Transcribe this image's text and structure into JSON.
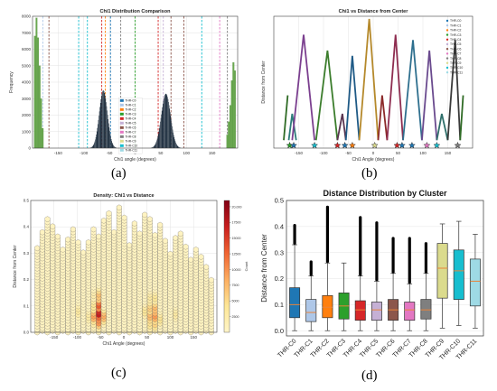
{
  "panel_labels": [
    "(a)",
    "(b)",
    "(c)",
    "(d)"
  ],
  "colors": {
    "THR-C0": "#1f77b4",
    "THR-C1": "#aec7e8",
    "THR-C2": "#ff7f0e",
    "THR-C3": "#2ca02c",
    "THR-C4": "#d62728",
    "THR-C5": "#c5b0d5",
    "THR-C6": "#8c564b",
    "THR-C7": "#e377c2",
    "THR-C8": "#7f7f7f",
    "THR-C9": "#dbdb8d",
    "THR-C10": "#17becf",
    "THR-C11": "#9edae5"
  },
  "chart_data": [
    {
      "type": "bar",
      "title": "Chi1 Distribution Comparison",
      "xlabel": "Chi1 angle (degrees)",
      "ylabel": "Frequency",
      "xlim": [
        -200,
        200
      ],
      "ylim": [
        0,
        8000
      ],
      "xticks": [
        -150,
        -100,
        -50,
        0,
        50,
        100,
        150
      ],
      "yticks": [
        0,
        1000,
        2000,
        3000,
        4000,
        5000,
        6000,
        7000,
        8000
      ],
      "grid": true,
      "legend_position": "lower-center",
      "legend": [
        "THR-C0",
        "THR-C1",
        "THR-C2",
        "THR-C3",
        "THR-C4",
        "THR-C5",
        "THR-C6",
        "THR-C7",
        "THR-C8",
        "THR-C9",
        "THR-C10",
        "THR-C11"
      ],
      "green_bars": {
        "x": [
          -195,
          -192,
          -189,
          -186,
          -183,
          -180,
          180,
          183,
          186,
          189,
          192,
          195
        ],
        "y": [
          6800,
          7900,
          6700,
          5000,
          3000,
          1200,
          800,
          1600,
          2600,
          4100,
          5200,
          4700
        ]
      },
      "peaks": [
        {
          "center": -62,
          "height": 3500,
          "width": 8
        },
        {
          "center": 60,
          "height": 3300,
          "width": 9
        }
      ],
      "vlines": [
        {
          "x": -180,
          "series": "THR-C1"
        },
        {
          "x": -168,
          "series": "THR-C6"
        },
        {
          "x": -110,
          "series": "THR-C10"
        },
        {
          "x": -93,
          "series": "THR-C10"
        },
        {
          "x": -65,
          "series": "THR-C4"
        },
        {
          "x": -58,
          "series": "THR-C2"
        },
        {
          "x": -48,
          "series": "THR-C0"
        },
        {
          "x": -28,
          "series": "THR-C8"
        },
        {
          "x": 0,
          "series": "THR-C3"
        },
        {
          "x": 45,
          "series": "THR-C4"
        },
        {
          "x": 55,
          "series": "THR-C5"
        },
        {
          "x": 70,
          "series": "THR-C6"
        },
        {
          "x": 95,
          "series": "THR-C6"
        },
        {
          "x": 130,
          "series": "THR-C10"
        },
        {
          "x": 165,
          "series": "THR-C7"
        },
        {
          "x": 180,
          "series": "THR-C8"
        }
      ]
    },
    {
      "type": "line",
      "title": "Chi1 vs Distance from Center",
      "xlabel": "Chi1 Angle (degrees)",
      "ylabel": "Distance from Center",
      "xlim": [
        -200,
        200
      ],
      "ylim": [
        0,
        0.5
      ],
      "xticks": [
        -150,
        -100,
        -50,
        0,
        50,
        100,
        150
      ],
      "yticks": [],
      "grid": true,
      "legend_position": "top-right",
      "legend": [
        "THR-C0",
        "THR-C1",
        "THR-C2",
        "THR-C3",
        "THR-C4",
        "THR-C5",
        "THR-C6",
        "THR-C7",
        "THR-C8",
        "THR-C9",
        "THR-C10",
        "THR-C11"
      ],
      "series": [
        {
          "name": "THR-C3",
          "color": "#2f6b25",
          "points": [
            [
              -180,
              0.03
            ],
            [
              -172,
              0.2
            ]
          ]
        },
        {
          "name": "THR-C0",
          "color": "#2e7d7a",
          "points": [
            [
              -170,
              0.03
            ],
            [
              -163,
              0.13
            ],
            [
              -155,
              0.03
            ]
          ]
        },
        {
          "name": "THR-C2",
          "color": "#7b3f8f",
          "points": [
            [
              -163,
              0.03
            ],
            [
              -140,
              0.43
            ],
            [
              -118,
              0.03
            ]
          ]
        },
        {
          "name": "THR-C3",
          "color": "#3b7d2c",
          "points": [
            [
              -115,
              0.03
            ],
            [
              -92,
              0.37
            ],
            [
              -72,
              0.03
            ]
          ]
        },
        {
          "name": "THR-C6",
          "color": "#5a3550",
          "points": [
            [
              -72,
              0.03
            ],
            [
              -62,
              0.13
            ],
            [
              -55,
              0.03
            ]
          ]
        },
        {
          "name": "THR-C1",
          "color": "#1f5a86",
          "points": [
            [
              -55,
              0.03
            ],
            [
              -42,
              0.35
            ],
            [
              -28,
              0.03
            ]
          ]
        },
        {
          "name": "THR-C9",
          "color": "#b5892b",
          "points": [
            [
              -28,
              0.03
            ],
            [
              -8,
              0.49
            ],
            [
              10,
              0.03
            ]
          ]
        },
        {
          "name": "THR-C4",
          "color": "#8c2a2a",
          "points": [
            [
              10,
              0.03
            ],
            [
              18,
              0.2
            ],
            [
              28,
              0.03
            ]
          ]
        },
        {
          "name": "THR-C7",
          "color": "#8e2d50",
          "points": [
            [
              28,
              0.03
            ],
            [
              45,
              0.43
            ],
            [
              60,
              0.03
            ]
          ]
        },
        {
          "name": "THR-C11",
          "color": "#2e6f8e",
          "points": [
            [
              60,
              0.03
            ],
            [
              80,
              0.41
            ],
            [
              98,
              0.03
            ]
          ]
        },
        {
          "name": "THR-C5",
          "color": "#6a4a8e",
          "points": [
            [
              98,
              0.03
            ],
            [
              113,
              0.37
            ],
            [
              128,
              0.03
            ]
          ]
        },
        {
          "name": "THR-C10",
          "color": "#2f6f6a",
          "points": [
            [
              128,
              0.03
            ],
            [
              138,
              0.13
            ],
            [
              150,
              0.03
            ]
          ]
        },
        {
          "name": "THR-C8",
          "color": "#3a3a3a",
          "points": [
            [
              150,
              0.03
            ],
            [
              165,
              0.41
            ],
            [
              175,
              0.03
            ]
          ]
        },
        {
          "name": "THR-C3",
          "color": "#2f6b25",
          "points": [
            [
              175,
              0.03
            ],
            [
              181,
              0.2
            ]
          ]
        }
      ],
      "stars": [
        {
          "x": -168,
          "color": "#2ca02c"
        },
        {
          "x": -160,
          "color": "#1f77b4"
        },
        {
          "x": -118,
          "color": "#17becf"
        },
        {
          "x": -72,
          "color": "#d62728"
        },
        {
          "x": -57,
          "color": "#1f77b4"
        },
        {
          "x": -42,
          "color": "#ff7f0e"
        },
        {
          "x": 3,
          "color": "#dbdb8d"
        },
        {
          "x": 48,
          "color": "#d62728"
        },
        {
          "x": 58,
          "color": "#1f77b4"
        },
        {
          "x": 78,
          "color": "#1f77b4"
        },
        {
          "x": 108,
          "color": "#e377c2"
        },
        {
          "x": 128,
          "color": "#17becf"
        },
        {
          "x": 170,
          "color": "#7f7f7f"
        }
      ]
    },
    {
      "type": "heatmap",
      "title": "Density: Chi1 vs Distance",
      "xlabel": "Chi1 Angle (degrees)",
      "ylabel": "Distance from Center",
      "colorbar_label": "Count",
      "colorbar_ticks": [
        2500,
        5000,
        7500,
        10000,
        12500,
        15000,
        17500,
        20000
      ],
      "colorbar_tick_labels": [
        "2500",
        "5000",
        "7500",
        "10000",
        "12500",
        "15000",
        "17500",
        "20,000"
      ],
      "xlim": [
        -200,
        200
      ],
      "ylim": [
        0,
        0.5
      ],
      "xticks": [
        -150,
        -100,
        -50,
        0,
        50,
        100,
        150
      ],
      "yticks": [
        0.0,
        0.1,
        0.2,
        0.3,
        0.4,
        0.5
      ],
      "grid": true,
      "columns": [
        {
          "x": -186,
          "top": 0.33
        },
        {
          "x": -175,
          "top": 0.38
        },
        {
          "x": -164,
          "top": 0.43
        },
        {
          "x": -153,
          "top": 0.41
        },
        {
          "x": -142,
          "top": 0.37
        },
        {
          "x": -131,
          "top": 0.32
        },
        {
          "x": -120,
          "top": 0.36
        },
        {
          "x": -109,
          "top": 0.4
        },
        {
          "x": -98,
          "top": 0.35
        },
        {
          "x": -87,
          "top": 0.31
        },
        {
          "x": -76,
          "top": 0.35
        },
        {
          "x": -65,
          "top": 0.4
        },
        {
          "x": -54,
          "top": 0.37
        },
        {
          "x": -43,
          "top": 0.43
        },
        {
          "x": -32,
          "top": 0.46
        },
        {
          "x": -21,
          "top": 0.38
        },
        {
          "x": -10,
          "top": 0.48
        },
        {
          "x": 1,
          "top": 0.44
        },
        {
          "x": 12,
          "top": 0.34
        },
        {
          "x": 23,
          "top": 0.42
        },
        {
          "x": 34,
          "top": 0.38
        },
        {
          "x": 45,
          "top": 0.45
        },
        {
          "x": 56,
          "top": 0.43
        },
        {
          "x": 67,
          "top": 0.37
        },
        {
          "x": 78,
          "top": 0.41
        },
        {
          "x": 89,
          "top": 0.35
        },
        {
          "x": 100,
          "top": 0.3
        },
        {
          "x": 111,
          "top": 0.36
        },
        {
          "x": 122,
          "top": 0.38
        },
        {
          "x": 133,
          "top": 0.33
        },
        {
          "x": 144,
          "top": 0.28
        },
        {
          "x": 155,
          "top": 0.32
        },
        {
          "x": 166,
          "top": 0.29
        },
        {
          "x": 177,
          "top": 0.25
        },
        {
          "x": 188,
          "top": 0.2
        }
      ],
      "hotspots": [
        {
          "x": -57,
          "y": 0.07,
          "count": 20000
        },
        {
          "x": -57,
          "y": 0.1,
          "count": 15000
        },
        {
          "x": -57,
          "y": 0.04,
          "count": 12000
        },
        {
          "x": -68,
          "y": 0.06,
          "count": 10500
        },
        {
          "x": -46,
          "y": 0.06,
          "count": 9500
        },
        {
          "x": -57,
          "y": 0.14,
          "count": 8000
        },
        {
          "x": 62,
          "y": 0.06,
          "count": 15000
        },
        {
          "x": 62,
          "y": 0.09,
          "count": 12000
        },
        {
          "x": 62,
          "y": 0.03,
          "count": 9000
        },
        {
          "x": 51,
          "y": 0.08,
          "count": 8000
        },
        {
          "x": 73,
          "y": 0.05,
          "count": 7000
        },
        {
          "x": 62,
          "y": 0.13,
          "count": 6500
        },
        {
          "x": -100,
          "y": 0.08,
          "count": 3500
        },
        {
          "x": 110,
          "y": 0.07,
          "count": 3000
        }
      ]
    },
    {
      "type": "box",
      "title": "Distance Distribution by Cluster",
      "xlabel": "",
      "ylabel": "Distance from Center",
      "ylim": [
        -0.02,
        0.5
      ],
      "yticks": [
        0.0,
        0.1,
        0.2,
        0.3,
        0.4,
        0.5
      ],
      "categories": [
        "THR-C0",
        "THR-C1",
        "THR-C2",
        "THR-C3",
        "THR-C4",
        "THR-C5",
        "THR-C6",
        "THR-C7",
        "THR-C8",
        "THR-C9",
        "THR-C10",
        "THR-C11"
      ],
      "boxes": [
        {
          "min": 0.0,
          "q1": 0.05,
          "median": 0.1,
          "q3": 0.165,
          "max": 0.33,
          "outlier_top": 0.41
        },
        {
          "min": 0.0,
          "q1": 0.035,
          "median": 0.07,
          "q3": 0.12,
          "max": 0.21,
          "outlier_top": 0.27
        },
        {
          "min": 0.0,
          "q1": 0.05,
          "median": 0.09,
          "q3": 0.135,
          "max": 0.26,
          "outlier_top": 0.48
        },
        {
          "min": 0.0,
          "q1": 0.045,
          "median": 0.095,
          "q3": 0.145,
          "max": 0.26,
          "outlier_top": null
        },
        {
          "min": 0.0,
          "q1": 0.04,
          "median": 0.08,
          "q3": 0.115,
          "max": 0.21,
          "outlier_top": 0.44
        },
        {
          "min": 0.0,
          "q1": 0.04,
          "median": 0.08,
          "q3": 0.11,
          "max": 0.19,
          "outlier_top": 0.42
        },
        {
          "min": 0.0,
          "q1": 0.04,
          "median": 0.08,
          "q3": 0.12,
          "max": 0.22,
          "outlier_top": 0.36
        },
        {
          "min": 0.0,
          "q1": 0.04,
          "median": 0.08,
          "q3": 0.11,
          "max": 0.18,
          "outlier_top": 0.36
        },
        {
          "min": 0.0,
          "q1": 0.045,
          "median": 0.08,
          "q3": 0.12,
          "max": 0.22,
          "outlier_top": 0.34
        },
        {
          "min": 0.01,
          "q1": 0.125,
          "median": 0.24,
          "q3": 0.335,
          "max": 0.41,
          "outlier_top": null
        },
        {
          "min": 0.02,
          "q1": 0.12,
          "median": 0.23,
          "q3": 0.31,
          "max": 0.42,
          "outlier_top": null
        },
        {
          "min": 0.01,
          "q1": 0.095,
          "median": 0.19,
          "q3": 0.275,
          "max": 0.37,
          "outlier_top": null
        }
      ]
    }
  ]
}
